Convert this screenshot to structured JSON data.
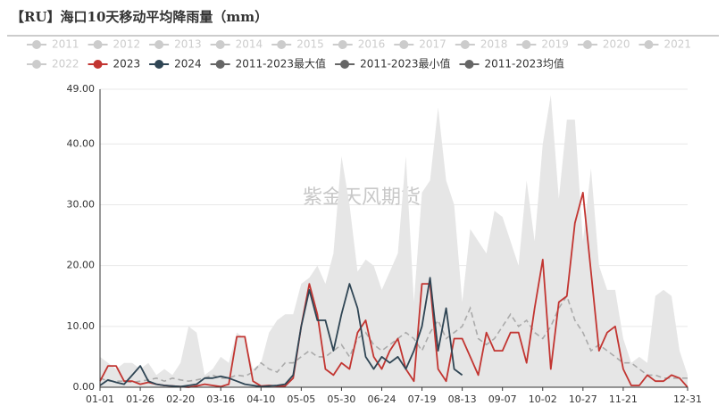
{
  "chart_data": {
    "type": "line",
    "title": "【RU】海口10天移动平均降雨量（mm）",
    "watermark": "紫金天风期货",
    "categories": [
      "01-01",
      null,
      null,
      null,
      null,
      "01-26",
      null,
      null,
      null,
      null,
      "02-20",
      null,
      null,
      null,
      null,
      "03-16",
      null,
      null,
      null,
      null,
      "04-10",
      null,
      null,
      null,
      null,
      "05-05",
      null,
      null,
      null,
      null,
      "05-30",
      null,
      null,
      null,
      null,
      "06-24",
      null,
      null,
      null,
      null,
      "07-19",
      null,
      null,
      null,
      null,
      "08-13",
      null,
      null,
      null,
      null,
      "09-07",
      null,
      null,
      null,
      null,
      "10-02",
      null,
      null,
      null,
      null,
      "10-27",
      null,
      null,
      null,
      null,
      "11-21",
      null,
      null,
      null,
      null,
      null,
      null,
      null,
      "12-31"
    ],
    "ylim": [
      0,
      49
    ],
    "yticks": [
      {
        "value": 0,
        "label": "0.00"
      },
      {
        "value": 10,
        "label": "10.00"
      },
      {
        "value": 20,
        "label": "20.00"
      },
      {
        "value": 30,
        "label": "30.00"
      },
      {
        "value": 40,
        "label": "40.00"
      },
      {
        "value": 49,
        "label": "49.00"
      }
    ],
    "grid": true,
    "series": [
      {
        "name": "2011",
        "color": "#cccccc",
        "visible": false,
        "values": null
      },
      {
        "name": "2012",
        "color": "#cccccc",
        "visible": false,
        "values": null
      },
      {
        "name": "2013",
        "color": "#cccccc",
        "visible": false,
        "values": null
      },
      {
        "name": "2014",
        "color": "#cccccc",
        "visible": false,
        "values": null
      },
      {
        "name": "2015",
        "color": "#cccccc",
        "visible": false,
        "values": null
      },
      {
        "name": "2016",
        "color": "#cccccc",
        "visible": false,
        "values": null
      },
      {
        "name": "2017",
        "color": "#cccccc",
        "visible": false,
        "values": null
      },
      {
        "name": "2018",
        "color": "#cccccc",
        "visible": false,
        "values": null
      },
      {
        "name": "2019",
        "color": "#cccccc",
        "visible": false,
        "values": null
      },
      {
        "name": "2020",
        "color": "#cccccc",
        "visible": false,
        "values": null
      },
      {
        "name": "2021",
        "color": "#cccccc",
        "visible": false,
        "values": null
      },
      {
        "name": "2022",
        "color": "#cccccc",
        "visible": false,
        "values": null
      },
      {
        "name": "2023",
        "color": "#c23531",
        "visible": true,
        "style": "line",
        "values": [
          1,
          3.5,
          3.5,
          1,
          1,
          0.5,
          0.8,
          0.5,
          0.3,
          0.2,
          0.1,
          0,
          0.2,
          0.5,
          0.3,
          0.1,
          0.5,
          8.3,
          8.3,
          1,
          0.2,
          0.3,
          0.2,
          0.2,
          1.5,
          10,
          17,
          12,
          3,
          2,
          4,
          3,
          9,
          11,
          5,
          3,
          6,
          8,
          3,
          1,
          17,
          17,
          3,
          1,
          8,
          8,
          5,
          2,
          9,
          6,
          6,
          9,
          9,
          4,
          13,
          21,
          3,
          14,
          15,
          27,
          32,
          19,
          6,
          9,
          10,
          3,
          0.3,
          0.3,
          2,
          1,
          1,
          2,
          1.5,
          0
        ]
      },
      {
        "name": "2024",
        "color": "#2f4554",
        "visible": true,
        "style": "line",
        "values": [
          0.3,
          1.2,
          0.8,
          0.5,
          2,
          3.5,
          1,
          0.5,
          0.3,
          0.2,
          0.1,
          0.3,
          0.5,
          1.5,
          1.5,
          1.8,
          1.5,
          1,
          0.5,
          0.3,
          0.1,
          0.2,
          0.3,
          0.5,
          2,
          10,
          16,
          11,
          11,
          6,
          12,
          17,
          13,
          5,
          3,
          5,
          4,
          5,
          3,
          6,
          10,
          18,
          6,
          13,
          3,
          2,
          null,
          null,
          null,
          null,
          null,
          null,
          null,
          null,
          null,
          null,
          null,
          null,
          null,
          null,
          null,
          null,
          null,
          null,
          null,
          null,
          null,
          null,
          null,
          null,
          null,
          null,
          null,
          null
        ]
      },
      {
        "name": "2011-2023最大值",
        "color": "#666666",
        "visible": true,
        "style": "area",
        "fill": "#e6e6e6",
        "values": [
          5,
          4,
          3,
          4,
          4,
          3,
          4,
          2,
          3,
          2,
          4,
          10,
          9,
          2,
          3,
          5,
          4,
          9,
          8,
          3,
          4,
          9,
          11,
          12,
          12,
          17,
          18,
          20,
          17,
          22,
          38,
          30,
          19,
          21,
          20,
          16,
          19,
          22,
          38,
          14,
          32,
          34,
          46,
          34,
          30,
          14,
          26,
          24,
          22,
          29,
          28,
          24,
          20,
          34,
          24,
          40,
          48,
          31,
          44,
          44,
          24,
          36,
          20,
          16,
          16,
          8,
          4,
          5,
          4,
          15,
          16,
          15,
          6,
          2
        ]
      },
      {
        "name": "2011-2023最小值",
        "color": "#666666",
        "visible": true,
        "style": "floor",
        "fill": "#e6e6e6",
        "values": [
          0,
          0,
          0,
          0,
          0,
          0,
          0,
          0,
          0,
          0,
          0,
          0,
          0,
          0,
          0,
          0,
          0,
          0,
          0,
          0,
          0,
          0,
          0,
          0,
          0,
          0,
          0,
          0,
          0,
          0,
          0,
          0,
          0,
          0,
          0,
          0,
          0,
          0,
          0,
          0,
          0,
          0,
          0,
          0,
          0,
          0,
          0,
          0,
          0,
          0,
          0,
          0,
          0,
          0,
          0,
          0,
          0,
          0,
          0,
          0,
          0,
          0,
          0,
          0,
          0,
          0,
          0,
          0,
          0,
          0,
          0,
          0,
          0,
          0
        ]
      },
      {
        "name": "2011-2023均值",
        "color": "#666666",
        "visible": true,
        "style": "dashed",
        "stroke": "#aaaaaa",
        "values": [
          1.5,
          1,
          1,
          1,
          0.8,
          1,
          1.2,
          1.5,
          1,
          1.5,
          1.2,
          1,
          1.2,
          1.5,
          2,
          1.5,
          1.5,
          2,
          1.8,
          2.5,
          4,
          3,
          2.5,
          4,
          4,
          5,
          6,
          5,
          5,
          6,
          7,
          5,
          8,
          9,
          7,
          6,
          7,
          8,
          9,
          8,
          6,
          9,
          11,
          8,
          9,
          10,
          13,
          8,
          7,
          8,
          10,
          12,
          10,
          11,
          9,
          8,
          10,
          13,
          15,
          11,
          9,
          6,
          7,
          6,
          5,
          4,
          4,
          3,
          2,
          2,
          1.5,
          1.5,
          1.5,
          1.5
        ]
      }
    ]
  }
}
